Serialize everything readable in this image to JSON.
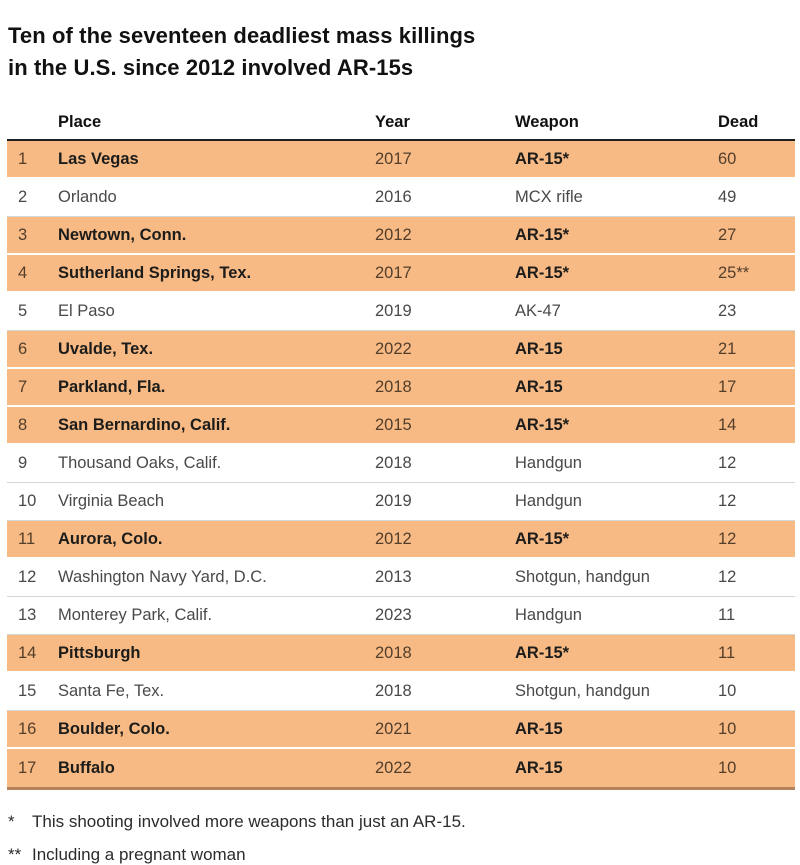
{
  "title": {
    "line1": "Ten of the seventeen deadliest mass killings",
    "line2": "in the U.S. since 2012 involved AR-15s"
  },
  "chart_data": {
    "type": "table",
    "title": "Ten of the seventeen deadliest mass killings in the U.S. since 2012 involved AR-15s",
    "columns": [
      "Place",
      "Year",
      "Weapon",
      "Dead"
    ],
    "highlight_meaning": "Orange-highlighted rows are the mass killings that involved AR-15s",
    "rows": [
      {
        "rank": "1",
        "place": "Las Vegas",
        "year": "2017",
        "weapon": "AR-15*",
        "dead": "60",
        "highlighted": true
      },
      {
        "rank": "2",
        "place": "Orlando",
        "year": "2016",
        "weapon": "MCX rifle",
        "dead": "49",
        "highlighted": false
      },
      {
        "rank": "3",
        "place": "Newtown, Conn.",
        "year": "2012",
        "weapon": "AR-15*",
        "dead": "27",
        "highlighted": true
      },
      {
        "rank": "4",
        "place": "Sutherland Springs, Tex.",
        "year": "2017",
        "weapon": "AR-15*",
        "dead": "25**",
        "highlighted": true
      },
      {
        "rank": "5",
        "place": "El Paso",
        "year": "2019",
        "weapon": "AK-47",
        "dead": "23",
        "highlighted": false
      },
      {
        "rank": "6",
        "place": "Uvalde, Tex.",
        "year": "2022",
        "weapon": "AR-15",
        "dead": "21",
        "highlighted": true
      },
      {
        "rank": "7",
        "place": "Parkland, Fla.",
        "year": "2018",
        "weapon": "AR-15",
        "dead": "17",
        "highlighted": true
      },
      {
        "rank": "8",
        "place": "San Bernardino, Calif.",
        "year": "2015",
        "weapon": "AR-15*",
        "dead": "14",
        "highlighted": true
      },
      {
        "rank": "9",
        "place": "Thousand Oaks, Calif.",
        "year": "2018",
        "weapon": "Handgun",
        "dead": "12",
        "highlighted": false
      },
      {
        "rank": "10",
        "place": "Virginia Beach",
        "year": "2019",
        "weapon": "Handgun",
        "dead": "12",
        "highlighted": false
      },
      {
        "rank": "11",
        "place": "Aurora, Colo.",
        "year": "2012",
        "weapon": "AR-15*",
        "dead": "12",
        "highlighted": true
      },
      {
        "rank": "12",
        "place": "Washington Navy Yard, D.C.",
        "year": "2013",
        "weapon": "Shotgun, handgun",
        "dead": "12",
        "highlighted": false
      },
      {
        "rank": "13",
        "place": "Monterey Park, Calif.",
        "year": "2023",
        "weapon": "Handgun",
        "dead": "11",
        "highlighted": false
      },
      {
        "rank": "14",
        "place": "Pittsburgh",
        "year": "2018",
        "weapon": "AR-15*",
        "dead": "11",
        "highlighted": true
      },
      {
        "rank": "15",
        "place": "Santa Fe, Tex.",
        "year": "2018",
        "weapon": "Shotgun, handgun",
        "dead": "10",
        "highlighted": false
      },
      {
        "rank": "16",
        "place": "Boulder, Colo.",
        "year": "2021",
        "weapon": "AR-15",
        "dead": "10",
        "highlighted": true
      },
      {
        "rank": "17",
        "place": "Buffalo",
        "year": "2022",
        "weapon": "AR-15",
        "dead": "10",
        "highlighted": true
      }
    ]
  },
  "footnotes": [
    {
      "marker": "*",
      "text": "This shooting involved more weapons than just an AR-15."
    },
    {
      "marker": "**",
      "text": "Including a pregnant woman"
    }
  ],
  "colors": {
    "highlight_row": "#f7ba85",
    "header_rule": "#1f1f1f",
    "table_bottom_edge": "#b5825a",
    "row_divider": "#d6d6d6",
    "title_text": "#111111",
    "body_text": "#494949"
  }
}
